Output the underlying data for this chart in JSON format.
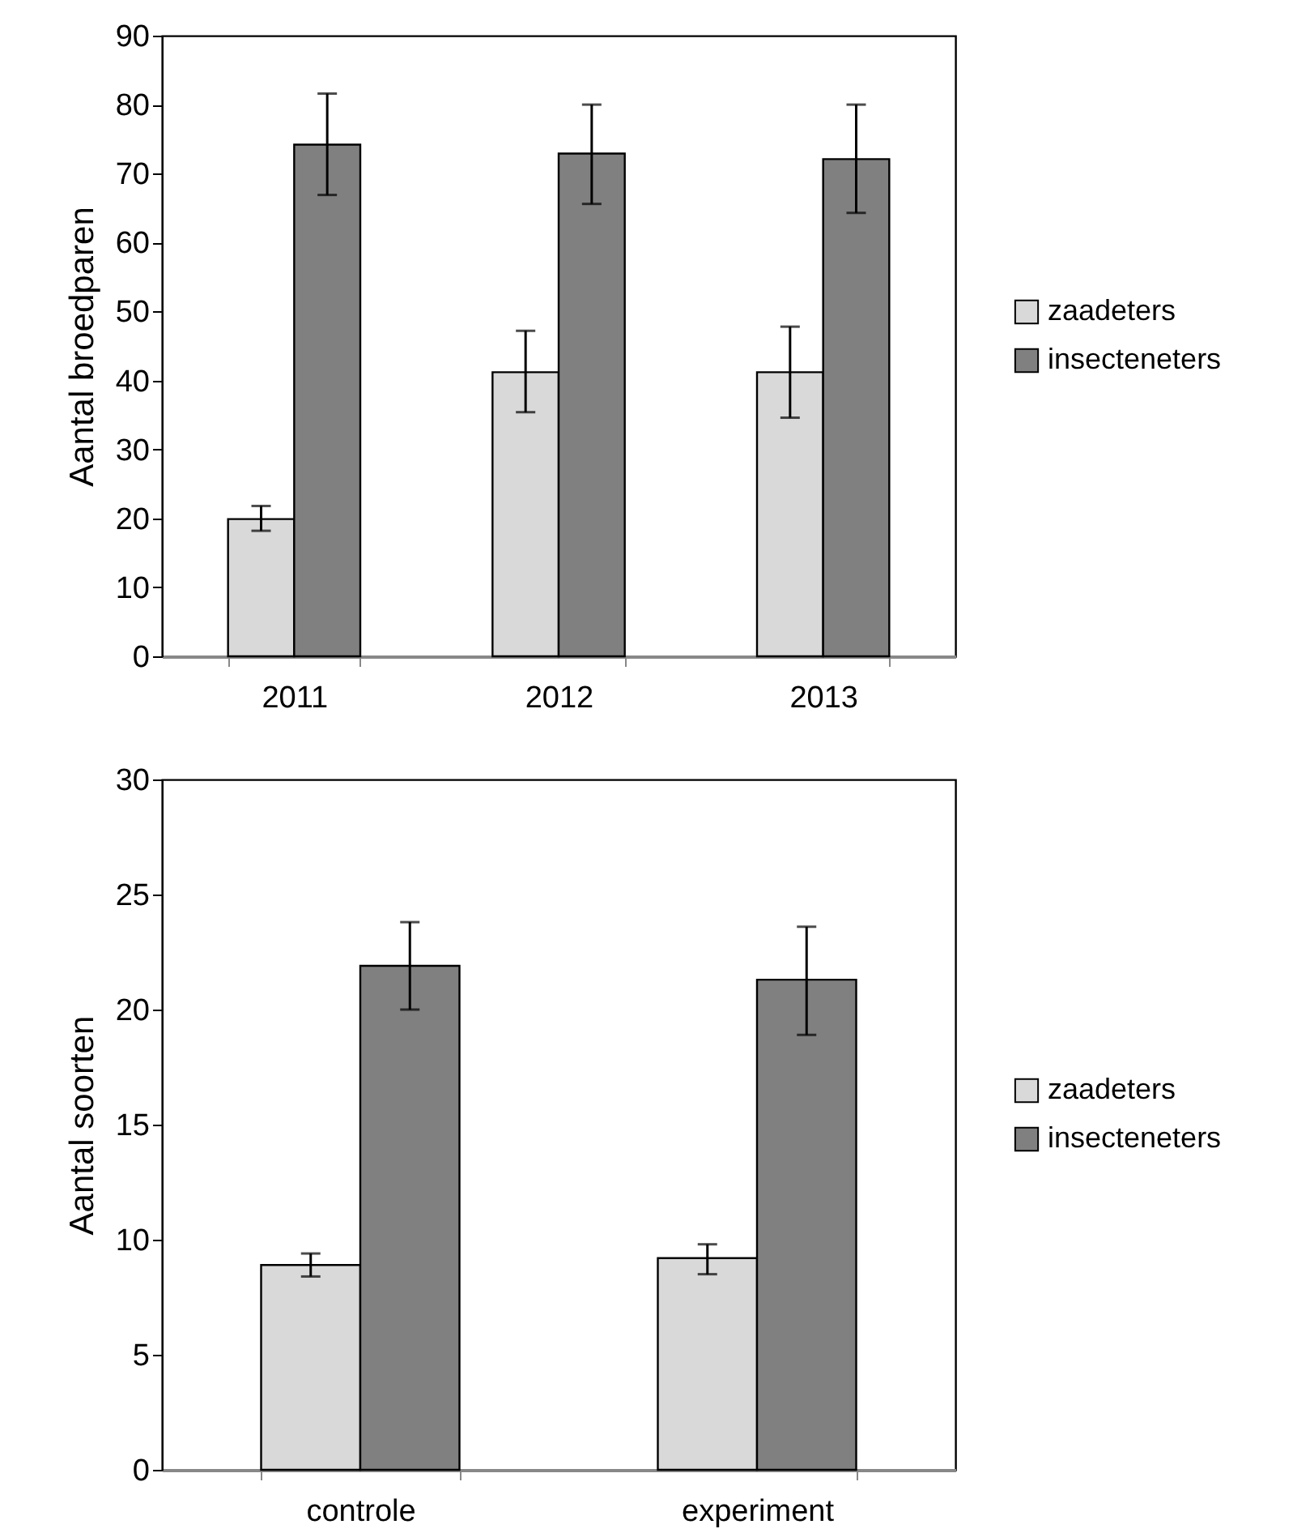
{
  "chart_data": [
    {
      "type": "bar",
      "ylabel": "Aantal broedparen",
      "categories": [
        "2011",
        "2012",
        "2013"
      ],
      "ylim": [
        0,
        90
      ],
      "yticks": [
        0,
        10,
        20,
        30,
        40,
        50,
        60,
        70,
        80,
        90
      ],
      "grid": false,
      "legend": "right",
      "series": [
        {
          "name": "zaadeters",
          "color": "#d9d9d9",
          "values": [
            19.9,
            41.2,
            41.2
          ],
          "errors": [
            [
              18.2,
              21.8
            ],
            [
              35.4,
              47.2
            ],
            [
              34.6,
              47.8
            ]
          ]
        },
        {
          "name": "insecteneters",
          "color": "#808080",
          "values": [
            74.2,
            72.9,
            72.1
          ],
          "errors": [
            [
              66.9,
              81.6
            ],
            [
              65.6,
              80.0
            ],
            [
              64.3,
              80.0
            ]
          ]
        }
      ]
    },
    {
      "type": "bar",
      "ylabel": "Aantal soorten",
      "categories": [
        "controle",
        "experiment"
      ],
      "ylim": [
        0,
        30
      ],
      "yticks": [
        0,
        5,
        10,
        15,
        20,
        25,
        30
      ],
      "grid": false,
      "legend": "right",
      "series": [
        {
          "name": "zaadeters",
          "color": "#d9d9d9",
          "values": [
            8.9,
            9.2
          ],
          "errors": [
            [
              8.4,
              9.4
            ],
            [
              8.5,
              9.8
            ]
          ]
        },
        {
          "name": "insecteneters",
          "color": "#808080",
          "values": [
            21.9,
            21.3
          ],
          "errors": [
            [
              20.0,
              23.8
            ],
            [
              18.9,
              23.6
            ]
          ]
        }
      ]
    }
  ]
}
